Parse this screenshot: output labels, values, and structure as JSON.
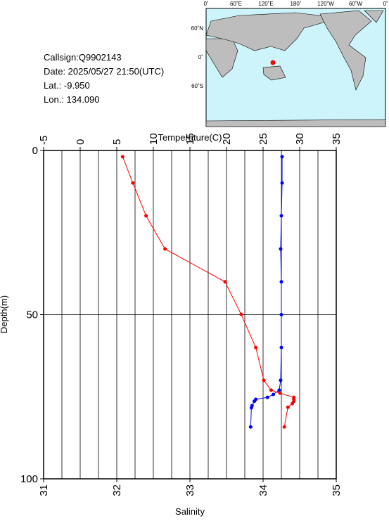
{
  "info": {
    "callsign": "Callsign:Q9902143",
    "date": "Date:  2025/05/27 21:50(UTC)",
    "lat": "Lat.:   -9.950",
    "lon": "Lon.:  134.090"
  },
  "map": {
    "lon_labels": [
      "0˚",
      "60˚E",
      "120˚E",
      "180˚",
      "120˚W",
      "60˚W",
      "0˚"
    ],
    "lat_labels": [
      "60˚N",
      "0˚",
      "60˚S"
    ]
  },
  "chart_data": {
    "type": "line",
    "x_label": "Temperature(C)",
    "x2_label": "Salinity",
    "y_label": "Depth(m)",
    "xlim": [
      -5,
      35
    ],
    "xticks": [
      -5,
      0,
      5,
      10,
      15,
      20,
      25,
      30,
      35
    ],
    "x2lim": [
      31,
      35
    ],
    "x2ticks": [
      31,
      32,
      33,
      34,
      35
    ],
    "x2grid": [
      31.25,
      31.5,
      31.75,
      32,
      32.25,
      32.5,
      32.75,
      33,
      33.25,
      33.5,
      33.75,
      34,
      34.25,
      34.5,
      34.75
    ],
    "ylim": [
      0,
      100
    ],
    "yticks": [
      0,
      50,
      100
    ],
    "ygrid": [
      50
    ],
    "y_inverted": true,
    "series": [
      {
        "color": "#0000ff",
        "axis": "x",
        "x": [
          27.6,
          27.6,
          27.5,
          27.4,
          27.5,
          27.5,
          27.5,
          27.4,
          27.2,
          26.4,
          25.6,
          24.0,
          23.8,
          23.5,
          23.4,
          23.3
        ],
        "y": [
          1.9,
          9.9,
          19.9,
          30,
          40,
          50,
          60,
          70,
          73,
          74.3,
          75.2,
          75.8,
          76.4,
          77.7,
          78.4,
          84.2
        ]
      },
      {
        "color": "#ff0000",
        "axis": "x2",
        "x": [
          32.08,
          32.22,
          32.4,
          32.66,
          33.48,
          33.7,
          33.9,
          34.01,
          34.11,
          34.23,
          34.42,
          34.42,
          34.42,
          34.4,
          34.34,
          34.29
        ],
        "y": [
          1.9,
          9.9,
          19.9,
          30,
          40,
          49.9,
          60,
          70,
          73,
          73.9,
          75.2,
          75.8,
          76.4,
          77.1,
          78.2,
          84.2
        ]
      }
    ]
  }
}
